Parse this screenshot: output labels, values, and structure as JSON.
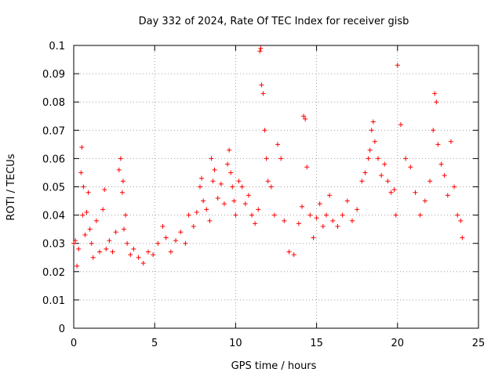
{
  "chart_data": {
    "type": "scatter",
    "title": "Day 332 of 2024, Rate Of TEC Index for receiver gisb",
    "xlabel": "GPS time / hours",
    "ylabel": "ROTI / TECUs",
    "xlim": [
      0,
      25
    ],
    "ylim": [
      0,
      0.1
    ],
    "xticks": [
      0,
      5,
      10,
      15,
      20,
      25
    ],
    "yticks": [
      0,
      0.01,
      0.02,
      0.03,
      0.04,
      0.05,
      0.06,
      0.07,
      0.08,
      0.09,
      0.1
    ],
    "grid": true,
    "marker": "+",
    "color": "#ff0000",
    "series": [
      {
        "x": [
          0.0,
          0.1,
          0.2,
          0.3,
          0.45,
          0.5,
          0.55,
          0.6,
          0.7,
          0.8,
          0.9,
          1.0,
          1.1,
          1.2,
          1.4,
          1.6,
          1.8,
          1.9,
          2.0,
          2.2,
          2.4,
          2.6,
          2.8,
          2.9,
          3.0,
          3.05,
          3.1,
          3.2,
          3.3,
          3.5,
          3.7,
          4.0,
          4.3,
          4.6,
          4.9,
          5.2,
          5.5,
          5.7,
          6.0,
          6.3,
          6.6,
          6.9,
          7.1,
          7.4,
          7.6,
          7.8,
          7.9,
          8.0,
          8.2,
          8.4,
          8.5,
          8.6,
          8.7,
          8.9,
          9.1,
          9.3,
          9.5,
          9.6,
          9.7,
          9.8,
          9.9,
          10.0,
          10.2,
          10.4,
          10.6,
          10.8,
          11.0,
          11.2,
          11.4,
          11.5,
          11.55,
          11.6,
          11.7,
          11.8,
          11.9,
          12.0,
          12.2,
          12.4,
          12.6,
          12.8,
          13.0,
          13.3,
          13.6,
          13.9,
          14.1,
          14.2,
          14.3,
          14.4,
          14.6,
          14.8,
          15.0,
          15.2,
          15.4,
          15.6,
          15.8,
          16.0,
          16.3,
          16.6,
          16.9,
          17.2,
          17.5,
          17.8,
          18.0,
          18.2,
          18.3,
          18.4,
          18.5,
          18.6,
          18.8,
          19.0,
          19.2,
          19.4,
          19.6,
          19.8,
          19.9,
          20.0,
          20.2,
          20.5,
          20.8,
          21.1,
          21.4,
          21.7,
          22.0,
          22.2,
          22.3,
          22.4,
          22.5,
          22.7,
          22.9,
          23.1,
          23.3,
          23.5,
          23.7,
          23.9,
          24.0
        ],
        "y": [
          0.03,
          0.031,
          0.022,
          0.028,
          0.055,
          0.064,
          0.04,
          0.05,
          0.033,
          0.041,
          0.048,
          0.035,
          0.03,
          0.025,
          0.038,
          0.027,
          0.042,
          0.049,
          0.028,
          0.031,
          0.027,
          0.034,
          0.056,
          0.06,
          0.048,
          0.052,
          0.035,
          0.04,
          0.03,
          0.026,
          0.028,
          0.025,
          0.023,
          0.027,
          0.026,
          0.03,
          0.036,
          0.032,
          0.027,
          0.031,
          0.034,
          0.03,
          0.04,
          0.036,
          0.041,
          0.05,
          0.053,
          0.045,
          0.042,
          0.038,
          0.06,
          0.052,
          0.056,
          0.046,
          0.051,
          0.044,
          0.058,
          0.063,
          0.055,
          0.05,
          0.045,
          0.04,
          0.052,
          0.05,
          0.044,
          0.047,
          0.04,
          0.037,
          0.042,
          0.098,
          0.099,
          0.086,
          0.083,
          0.07,
          0.06,
          0.052,
          0.05,
          0.04,
          0.065,
          0.06,
          0.038,
          0.027,
          0.026,
          0.037,
          0.043,
          0.075,
          0.074,
          0.057,
          0.04,
          0.032,
          0.039,
          0.044,
          0.036,
          0.04,
          0.047,
          0.038,
          0.036,
          0.04,
          0.045,
          0.038,
          0.042,
          0.052,
          0.055,
          0.06,
          0.063,
          0.07,
          0.073,
          0.066,
          0.06,
          0.054,
          0.058,
          0.052,
          0.048,
          0.049,
          0.04,
          0.093,
          0.072,
          0.06,
          0.057,
          0.048,
          0.04,
          0.045,
          0.052,
          0.07,
          0.083,
          0.08,
          0.065,
          0.058,
          0.054,
          0.047,
          0.066,
          0.05,
          0.04,
          0.038,
          0.032
        ]
      }
    ]
  }
}
